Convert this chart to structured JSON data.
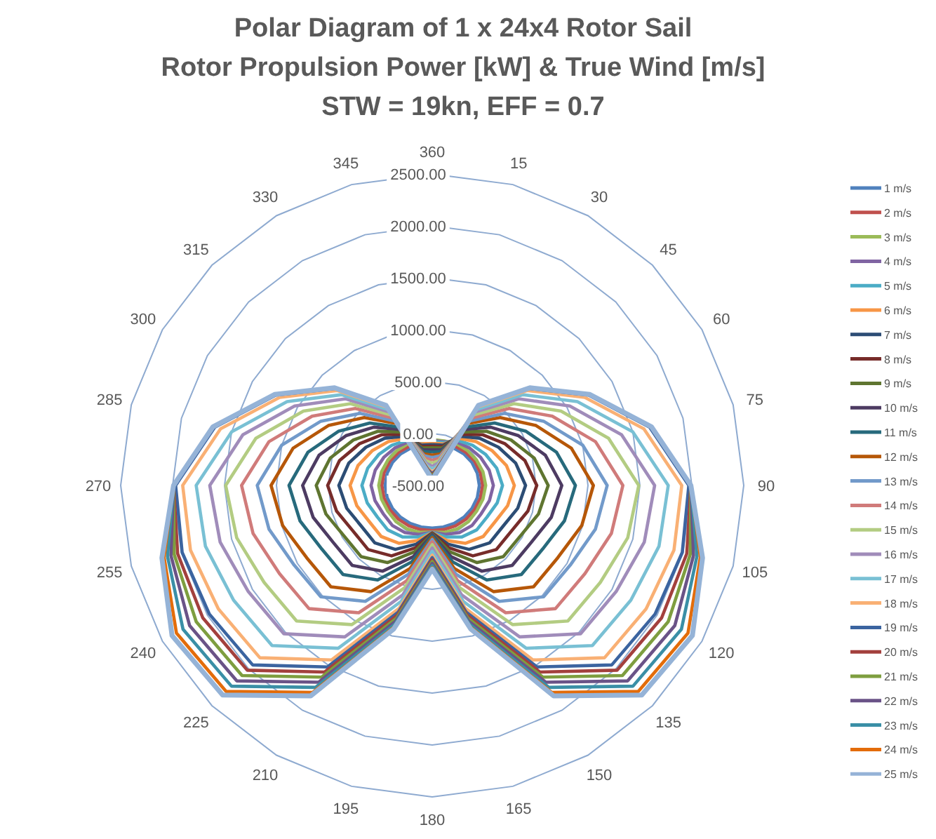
{
  "chart_data": {
    "type": "radar",
    "title": "Polar Diagram of 1 x 24x4 Rotor Sail\nRotor Propulsion Power [kW] & True Wind [m/s]\nSTW = 19kn, EFF = 0.7",
    "categories": [
      "360",
      "15",
      "30",
      "45",
      "60",
      "75",
      "90",
      "105",
      "120",
      "135",
      "150",
      "165",
      "180",
      "195",
      "210",
      "225",
      "240",
      "255",
      "270",
      "285",
      "300",
      "315",
      "330",
      "345"
    ],
    "ylim": [
      -500,
      2500
    ],
    "yticks": [
      {
        "value": -500,
        "label": "-500.00"
      },
      {
        "value": 0,
        "label": "0.00"
      },
      {
        "value": 500,
        "label": "500.00"
      },
      {
        "value": 1000,
        "label": "1000.00"
      },
      {
        "value": 1500,
        "label": "1500.00"
      },
      {
        "value": 2000,
        "label": "2000.00"
      },
      {
        "value": 2500,
        "label": "2500.00"
      }
    ],
    "grid": true,
    "legend": "right",
    "line_style": "solid",
    "marker": "none",
    "series": [
      {
        "name": "1 m/s",
        "color": "#4f81bd",
        "values": [
          -100,
          -97,
          -85,
          -70,
          -58,
          -50,
          -46,
          -50,
          -58,
          -68,
          -78,
          -86,
          -90,
          -86,
          -78,
          -68,
          -58,
          -50,
          -46,
          -50,
          -58,
          -70,
          -85,
          -97
        ]
      },
      {
        "name": "2 m/s",
        "color": "#c0504d",
        "values": [
          -80,
          -77,
          -62,
          -45,
          -30,
          -20,
          -15,
          -20,
          -30,
          -40,
          -50,
          -60,
          -65,
          -60,
          -50,
          -40,
          -30,
          -20,
          -15,
          -20,
          -30,
          -45,
          -62,
          -77
        ]
      },
      {
        "name": "3 m/s",
        "color": "#9bbb59",
        "values": [
          -57,
          -56,
          -36,
          -22,
          -8,
          6,
          15,
          6,
          -6,
          -7,
          -16,
          -32,
          -50,
          -32,
          -16,
          -7,
          -6,
          6,
          15,
          6,
          -8,
          -22,
          -36,
          -56
        ]
      },
      {
        "name": "4 m/s",
        "color": "#8064a2",
        "values": [
          -66,
          -64,
          -20,
          10,
          39,
          68,
          89,
          70,
          45,
          44,
          24,
          -12,
          -49,
          -12,
          24,
          44,
          45,
          70,
          89,
          68,
          39,
          10,
          -20,
          -64
        ]
      },
      {
        "name": "5 m/s",
        "color": "#4bacc6",
        "values": [
          -76,
          -73,
          -1,
          48,
          95,
          143,
          177,
          148,
          109,
          106,
          73,
          14,
          -48,
          14,
          73,
          106,
          109,
          148,
          177,
          143,
          95,
          48,
          -1,
          -73
        ]
      },
      {
        "name": "6 m/s",
        "color": "#f79646",
        "values": [
          -92,
          -86,
          23,
          97,
          168,
          240,
          291,
          252,
          199,
          195,
          143,
          50,
          -46,
          50,
          143,
          195,
          199,
          252,
          291,
          240,
          168,
          97,
          23,
          -86
        ]
      },
      {
        "name": "7 m/s",
        "color": "#2c4d75",
        "values": [
          -106,
          -98,
          47,
          144,
          237,
          332,
          399,
          352,
          287,
          282,
          211,
          85,
          -43,
          85,
          211,
          282,
          287,
          352,
          399,
          332,
          237,
          144,
          47,
          -98
        ]
      },
      {
        "name": "8 m/s",
        "color": "#772c2a",
        "values": [
          -122,
          -112,
          70,
          190,
          306,
          424,
          507,
          454,
          380,
          373,
          283,
          122,
          -39,
          122,
          283,
          373,
          380,
          454,
          507,
          424,
          306,
          190,
          70,
          -112
        ]
      },
      {
        "name": "9 m/s",
        "color": "#5f7530",
        "values": [
          -138,
          -126,
          94,
          238,
          376,
          517,
          617,
          560,
          478,
          469,
          358,
          162,
          -33,
          162,
          358,
          469,
          478,
          560,
          617,
          517,
          376,
          238,
          94,
          -126
        ]
      },
      {
        "name": "10 m/s",
        "color": "#4d3b62",
        "values": [
          -158,
          -143,
          122,
          294,
          459,
          628,
          748,
          687,
          600,
          589,
          453,
          211,
          -25,
          211,
          453,
          589,
          600,
          687,
          748,
          628,
          459,
          294,
          122,
          -143
        ]
      },
      {
        "name": "11 m/s",
        "color": "#276a7c",
        "values": [
          -179,
          -161,
          150,
          350,
          543,
          739,
          879,
          818,
          727,
          714,
          551,
          262,
          -14,
          262,
          551,
          714,
          727,
          818,
          879,
          739,
          543,
          350,
          150,
          -161
        ]
      },
      {
        "name": "12 m/s",
        "color": "#b65708",
        "values": [
          -208,
          -185,
          188,
          425,
          654,
          887,
          1052,
          991,
          895,
          880,
          681,
          329,
          3,
          329,
          681,
          880,
          895,
          991,
          1052,
          887,
          654,
          425,
          188,
          -185
        ]
      },
      {
        "name": "13 m/s",
        "color": "#729aca",
        "values": [
          -231,
          -205,
          216,
          482,
          738,
          1000,
          1185,
          1127,
          1035,
          1017,
          789,
          385,
          20,
          385,
          789,
          1017,
          1035,
          1127,
          1185,
          1000,
          738,
          482,
          216,
          -205
        ]
      },
      {
        "name": "14 m/s",
        "color": "#d07b7a",
        "values": [
          -258,
          -229,
          249,
          548,
          835,
          1128,
          1336,
          1286,
          1198,
          1178,
          916,
          451,
          43,
          451,
          916,
          1178,
          1198,
          1286,
          1336,
          1128,
          835,
          548,
          249,
          -229
        ]
      },
      {
        "name": "15 m/s",
        "color": "#b3cc82",
        "values": [
          -286,
          -253,
          282,
          614,
          932,
          1258,
          1489,
          1449,
          1369,
          1347,
          1048,
          519,
          71,
          519,
          1048,
          1347,
          1369,
          1449,
          1489,
          1258,
          932,
          614,
          282,
          -253
        ]
      },
      {
        "name": "16 m/s",
        "color": "#a08cba",
        "values": [
          -316,
          -279,
          315,
          680,
          1030,
          1388,
          1642,
          1614,
          1545,
          1520,
          1184,
          590,
          102,
          590,
          1184,
          1520,
          1545,
          1614,
          1642,
          1388,
          1030,
          680,
          315,
          -279
        ]
      },
      {
        "name": "17 m/s",
        "color": "#79c0d4",
        "values": [
          -343,
          -302,
          343,
          736,
          1114,
          1499,
          1773,
          1761,
          1709,
          1681,
          1311,
          656,
          135,
          656,
          1311,
          1681,
          1709,
          1761,
          1773,
          1499,
          1114,
          736,
          343,
          -302
        ]
      },
      {
        "name": "18 m/s",
        "color": "#f9b074",
        "values": [
          -371,
          -326,
          371,
          792,
          1197,
          1610,
          1903,
          1910,
          1878,
          1847,
          1441,
          723,
          172,
          723,
          1441,
          1847,
          1878,
          1910,
          1903,
          1610,
          1197,
          792,
          371,
          -326
        ]
      },
      {
        "name": "19 m/s",
        "color": "#3b64a0",
        "values": [
          -388,
          -341,
          386,
          821,
          1240,
          1668,
          1971,
          1993,
          1978,
          1945,
          1519,
          763,
          196,
          763,
          1519,
          1945,
          1978,
          1993,
          1971,
          1668,
          1240,
          821,
          386,
          -341
        ]
      },
      {
        "name": "20 m/s",
        "color": "#a3403d",
        "values": [
          -400,
          -351,
          390,
          830,
          1253,
          1685,
          1991,
          2038,
          2051,
          2017,
          1575,
          793,
          214,
          793,
          1575,
          2017,
          2051,
          2038,
          1991,
          1685,
          1253,
          830,
          390,
          -351
        ]
      },
      {
        "name": "21 m/s",
        "color": "#7e9e3f",
        "values": [
          -412,
          -362,
          390,
          830,
          1253,
          1685,
          1991,
          2072,
          2124,
          2090,
          1632,
          822,
          233,
          822,
          1632,
          2090,
          2124,
          2072,
          1991,
          1685,
          1253,
          830,
          390,
          -362
        ]
      },
      {
        "name": "22 m/s",
        "color": "#6a5387",
        "values": [
          -424,
          -372,
          390,
          830,
          1253,
          1685,
          1991,
          2105,
          2198,
          2162,
          1689,
          852,
          252,
          852,
          1689,
          2162,
          2198,
          2105,
          1991,
          1685,
          1253,
          830,
          390,
          -372
        ]
      },
      {
        "name": "23 m/s",
        "color": "#3a8fa6",
        "values": [
          -437,
          -383,
          390,
          830,
          1253,
          1685,
          1991,
          2139,
          2271,
          2234,
          1746,
          881,
          272,
          881,
          1746,
          2234,
          2271,
          2139,
          1991,
          1685,
          1253,
          830,
          390,
          -383
        ]
      },
      {
        "name": "24 m/s",
        "color": "#e36c0a",
        "values": [
          -449,
          -393,
          390,
          830,
          1253,
          1685,
          1991,
          2173,
          2344,
          2306,
          1802,
          910,
          293,
          910,
          1802,
          2306,
          2344,
          2173,
          1991,
          1685,
          1253,
          830,
          390,
          -393
        ]
      },
      {
        "name": "25 m/s",
        "color": "#95b3d7",
        "values": [
          -457,
          -400,
          390,
          830,
          1253,
          1685,
          1991,
          2195,
          2393,
          2354,
          1840,
          930,
          307,
          930,
          1840,
          2354,
          2393,
          2195,
          1991,
          1685,
          1253,
          830,
          390,
          -400
        ]
      }
    ]
  }
}
